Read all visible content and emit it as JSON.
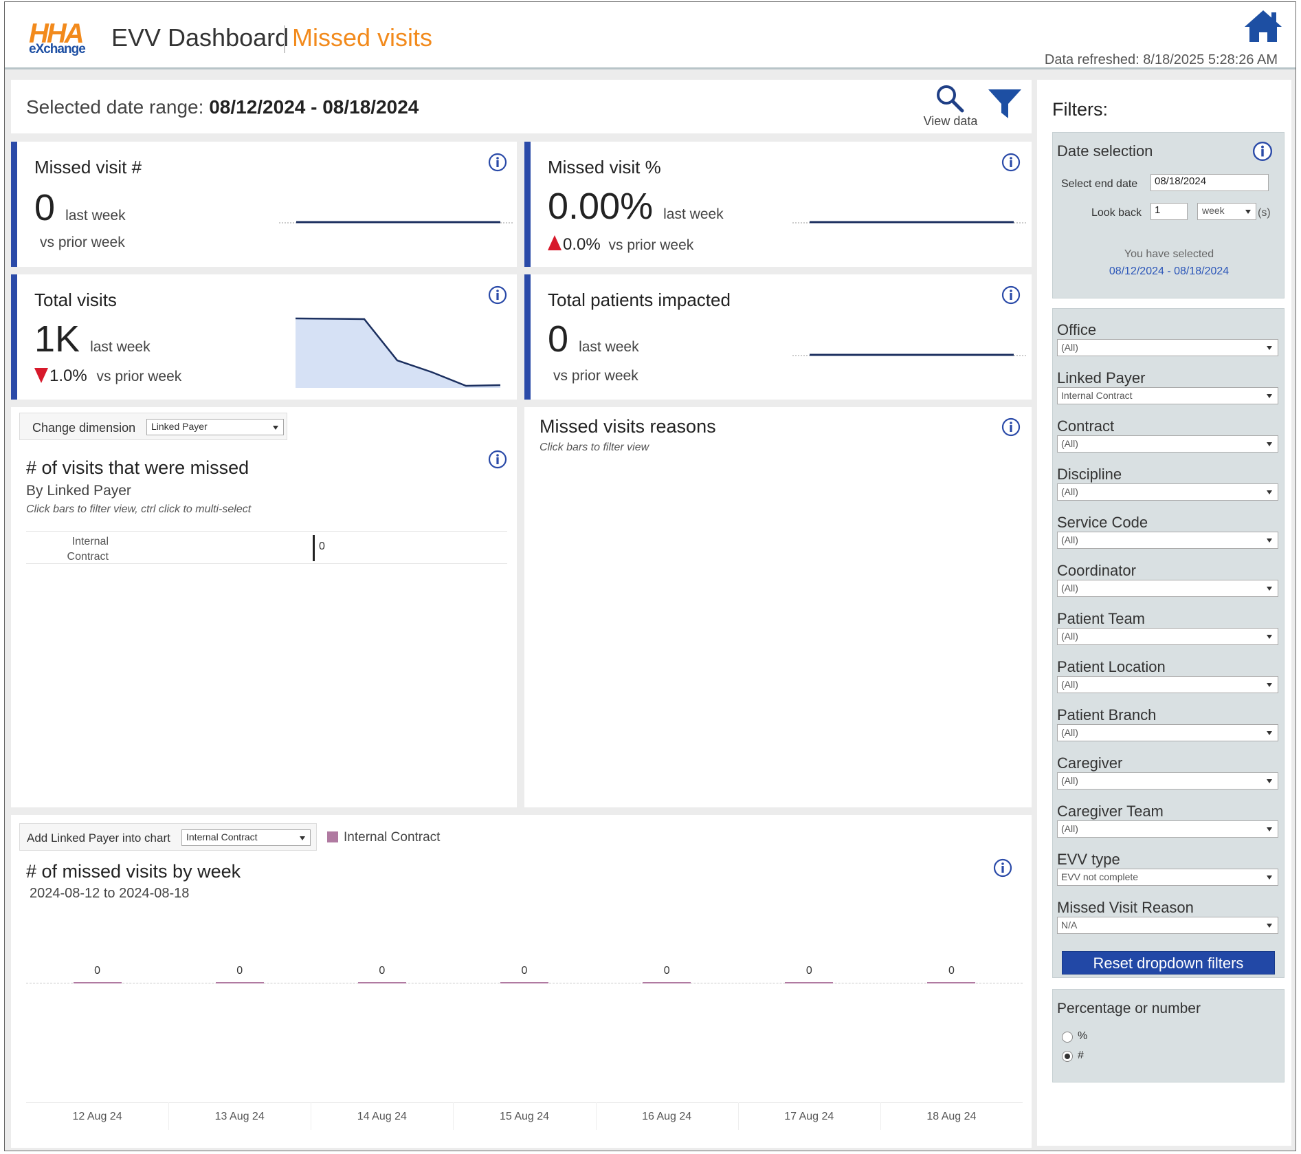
{
  "header": {
    "logo_top": "HHA",
    "logo_bottom": "eXchange",
    "app_title": "EVV Dashboard",
    "page_title": "Missed visits",
    "refreshed": "Data refreshed: 8/18/2025 5:28:26 AM"
  },
  "date_range": {
    "label": "Selected date range:",
    "value": "08/12/2024 - 08/18/2024",
    "view_data": "View data"
  },
  "kpis": {
    "missed_count": {
      "title": "Missed visit #",
      "value": "0",
      "unit": "last week",
      "sub": "vs prior week"
    },
    "missed_pct": {
      "title": "Missed visit %",
      "value": "0.00%",
      "unit": "last week",
      "delta": "0.0%",
      "sub": "vs prior week"
    },
    "total_visits": {
      "title": "Total visits",
      "value": "1K",
      "unit": "last week",
      "delta": "1.0%",
      "sub": "vs prior week"
    },
    "patients": {
      "title": "Total patients impacted",
      "value": "0",
      "unit": "last week",
      "sub": "vs prior week"
    }
  },
  "dimension_panel": {
    "change_label": "Change dimension",
    "change_value": "Linked Payer",
    "title": "# of visits that were missed",
    "subtitle": "By Linked Payer",
    "hint": "Click bars to filter view, ctrl click to multi-select",
    "rows": [
      {
        "label_1": "Internal",
        "label_2": "Contract",
        "value": "0"
      }
    ]
  },
  "reasons_panel": {
    "title": "Missed visits reasons",
    "hint": "Click bars to filter view"
  },
  "weekly_panel": {
    "add_label": "Add Linked Payer into chart",
    "add_value": "Internal Contract",
    "legend": "Internal Contract",
    "title": "# of missed visits by week",
    "subtitle": "2024-08-12 to 2024-08-18"
  },
  "chart_data": {
    "type": "bar",
    "title": "# of missed visits by week",
    "categories": [
      "12 Aug 24",
      "13 Aug 24",
      "14 Aug 24",
      "15 Aug 24",
      "16 Aug 24",
      "17 Aug 24",
      "18 Aug 24"
    ],
    "series": [
      {
        "name": "Internal Contract",
        "values": [
          0,
          0,
          0,
          0,
          0,
          0,
          0
        ]
      }
    ],
    "data_labels": true,
    "legend_position": "top-left",
    "color": "#b07aa1"
  },
  "filters": {
    "title": "Filters:",
    "date_selection": {
      "title": "Date selection",
      "end_date_label": "Select end date",
      "end_date": "08/18/2024",
      "look_back_label": "Look back",
      "look_back_value": "1",
      "look_back_unit": "week",
      "unit_suffix": "(s)",
      "selected_label": "You have selected",
      "selected_value": "08/12/2024 - 08/18/2024"
    },
    "dropdowns": [
      {
        "label": "Office",
        "value": "(All)"
      },
      {
        "label": "Linked Payer",
        "value": "Internal Contract"
      },
      {
        "label": "Contract",
        "value": "(All)"
      },
      {
        "label": "Discipline",
        "value": "(All)"
      },
      {
        "label": "Service Code",
        "value": "(All)"
      },
      {
        "label": "Coordinator",
        "value": "(All)"
      },
      {
        "label": "Patient Team",
        "value": "(All)"
      },
      {
        "label": "Patient Location",
        "value": "(All)"
      },
      {
        "label": "Patient Branch",
        "value": "(All)"
      },
      {
        "label": "Caregiver",
        "value": "(All)"
      },
      {
        "label": "Caregiver Team",
        "value": "(All)"
      },
      {
        "label": "EVV type",
        "value": "EVV not complete"
      },
      {
        "label": "Missed Visit Reason",
        "value": "N/A"
      }
    ],
    "reset_label": "Reset dropdown filters",
    "pct_or_number": {
      "title": "Percentage or number",
      "options": [
        "%",
        "#"
      ],
      "selected": "#"
    }
  },
  "colors": {
    "accent": "#2a4aa8",
    "brand_orange": "#f28a1c",
    "down_red": "#d7192b",
    "series": "#b07aa1"
  }
}
